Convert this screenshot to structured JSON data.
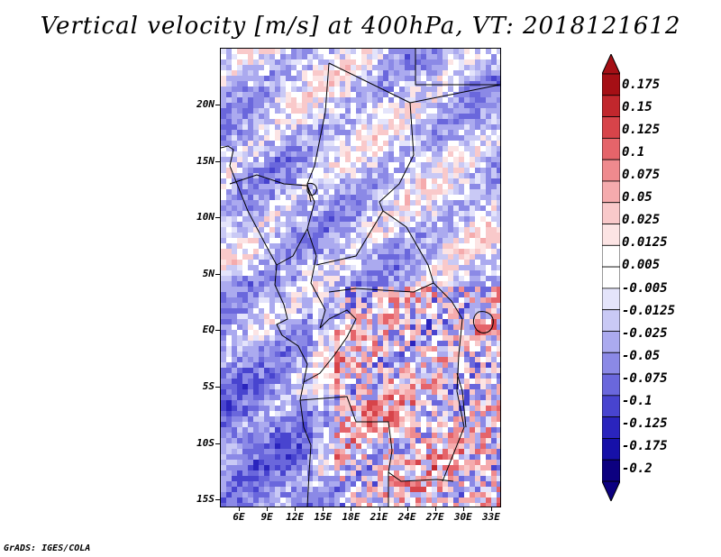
{
  "title": "Vertical velocity [m/s] at 400hPa, VT: 2018121612",
  "footer": "GrADS: IGES/COLA",
  "map": {
    "lat_labels": [
      "20N",
      "15N",
      "10N",
      "5N",
      "EQ",
      "5S",
      "10S",
      "15S"
    ],
    "lon_labels": [
      "6E",
      "9E",
      "12E",
      "15E",
      "18E",
      "21E",
      "24E",
      "27E",
      "30E",
      "33E"
    ],
    "field": "vertical velocity",
    "level": "400hPa",
    "valid_time": "2018121612"
  },
  "colorbar": {
    "labels": [
      "0.175",
      "0.15",
      "0.125",
      "0.1",
      "0.075",
      "0.05",
      "0.025",
      "0.0125",
      "0.005",
      "-0.005",
      "-0.0125",
      "-0.025",
      "-0.05",
      "-0.075",
      "-0.1",
      "-0.125",
      "-0.175",
      "-0.2"
    ],
    "colors": [
      "#a50f15",
      "#c1272d",
      "#d7444a",
      "#e5646a",
      "#ef8a8e",
      "#f5abad",
      "#f9c9ca",
      "#fce4e4",
      "#ffffff",
      "#ffffff",
      "#e4e4fb",
      "#c9c9f5",
      "#abaaef",
      "#8b89e6",
      "#6a67dc",
      "#4844cf",
      "#2a24bd",
      "#1610a8",
      "#0c0080"
    ],
    "top_color": "#a50f15",
    "bottom_color": "#0c0080"
  },
  "chart_data": {
    "type": "heatmap",
    "title": "Vertical velocity [m/s] at 400hPa, VT: 2018121612",
    "xlabel": "",
    "ylabel": "",
    "x_ticks": [
      "6E",
      "9E",
      "12E",
      "15E",
      "18E",
      "21E",
      "24E",
      "27E",
      "30E",
      "33E"
    ],
    "y_ticks": [
      "20N",
      "15N",
      "10N",
      "5N",
      "EQ",
      "5S",
      "10S",
      "15S"
    ],
    "levels": [
      -0.2,
      -0.175,
      -0.125,
      -0.1,
      -0.075,
      -0.05,
      -0.025,
      -0.0125,
      -0.005,
      0.005,
      0.0125,
      0.025,
      0.05,
      0.075,
      0.1,
      0.125,
      0.15,
      0.175
    ]
  }
}
